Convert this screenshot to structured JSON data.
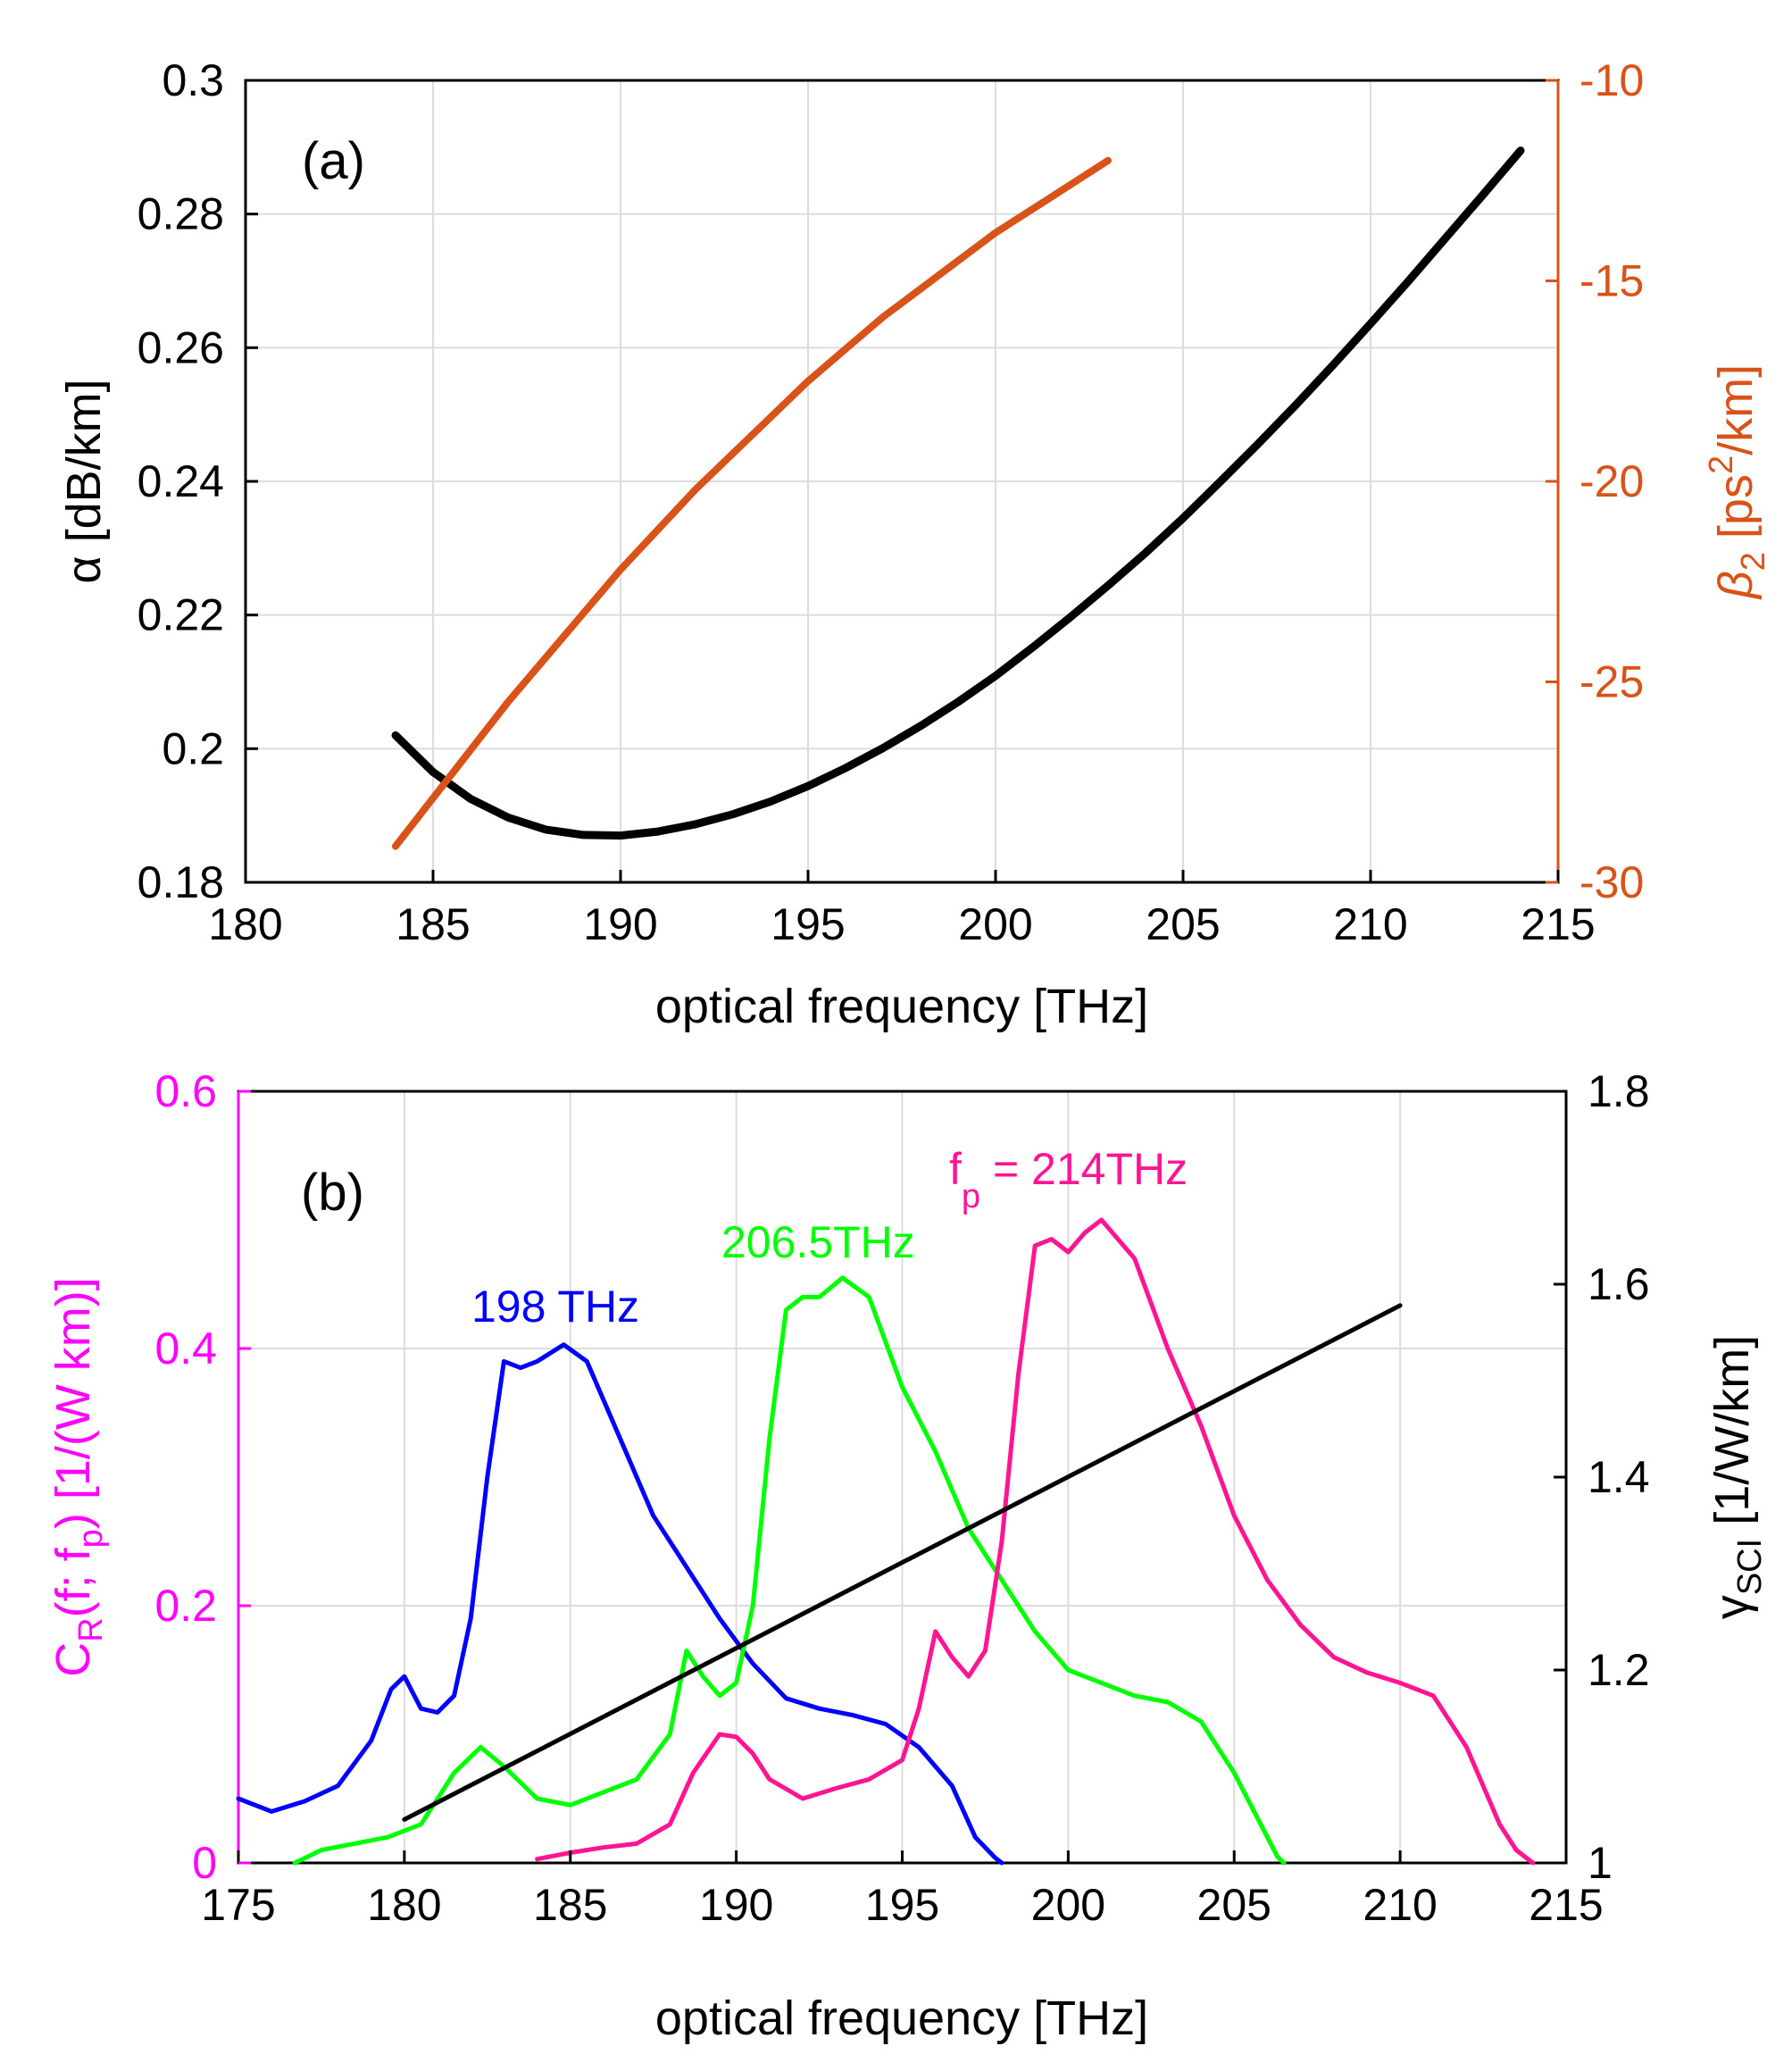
{
  "colors": {
    "alpha": "#000000",
    "beta2": "#d95319",
    "left_b": "#ff00ff",
    "blue": "#0000ff",
    "green": "#00ff00",
    "pink": "#ff1493",
    "gamma": "#000000",
    "axis": "#000000"
  },
  "chart_data": [
    {
      "id": "a",
      "type": "line",
      "panel_label": "(a)",
      "xlabel": "optical frequency [THz]",
      "ylabel_left": "α [dB/km]",
      "ylabel_right": {
        "main": "β",
        "sub": "2",
        "rest": " [ps",
        "sup": "2",
        "end": "/km]"
      },
      "xlim": [
        180,
        215
      ],
      "ylim_left": [
        0.18,
        0.3
      ],
      "ylim_right": [
        -30,
        -10
      ],
      "xticks": [
        "180",
        "185",
        "190",
        "195",
        "200",
        "205",
        "210",
        "215"
      ],
      "yticks_left": [
        "0.18",
        "0.2",
        "0.22",
        "0.24",
        "0.26",
        "0.28",
        "0.3"
      ],
      "yticks_right": [
        "-30",
        "-25",
        "-20",
        "-15",
        "-10"
      ],
      "grid": true,
      "series": [
        {
          "name": "alpha",
          "axis": "left",
          "x": [
            184,
            185,
            186,
            187,
            188,
            189,
            190,
            191,
            192,
            193,
            194,
            195,
            196,
            197,
            198,
            199,
            200,
            201,
            202,
            203,
            204,
            205,
            206,
            207,
            208,
            209,
            210,
            211,
            212,
            213,
            214
          ],
          "y": [
            0.202,
            0.1965,
            0.1925,
            0.1897,
            0.1879,
            0.1871,
            0.187,
            0.1876,
            0.1887,
            0.1902,
            0.1921,
            0.1944,
            0.1971,
            0.2001,
            0.2034,
            0.207,
            0.2109,
            0.2152,
            0.2197,
            0.2244,
            0.2293,
            0.2345,
            0.24,
            0.2456,
            0.2514,
            0.2574,
            0.2636,
            0.2699,
            0.2764,
            0.2829,
            0.2895
          ]
        },
        {
          "name": "beta2",
          "axis": "right",
          "x": [
            184,
            185,
            186,
            187,
            188,
            189,
            190,
            191,
            192,
            193,
            194,
            195,
            196,
            197,
            198,
            199,
            200,
            201,
            202,
            203
          ],
          "y": [
            -29.1,
            -27.9,
            -26.7,
            -25.5,
            -24.4,
            -23.3,
            -22.2,
            -21.2,
            -20.2,
            -19.3,
            -18.4,
            -17.5,
            -16.7,
            -15.9,
            -15.2,
            -14.5,
            -13.8,
            -13.2,
            -12.6,
            -12.0
          ]
        }
      ]
    },
    {
      "id": "b",
      "type": "line",
      "panel_label": "(b)",
      "xlabel": "optical frequency [THz]",
      "ylabel_left": {
        "main": "C",
        "sub": "R",
        "mid": "(f; f",
        "sub2": "p",
        "end": ")  [1/(W km)]"
      },
      "ylabel_right": {
        "main": "γ",
        "sub": "SCI",
        "end": " [1/W/km]"
      },
      "xlim": [
        175,
        215
      ],
      "ylim_left": [
        0,
        0.6
      ],
      "ylim_right": [
        1,
        1.8
      ],
      "xticks": [
        "175",
        "180",
        "185",
        "190",
        "195",
        "200",
        "205",
        "210",
        "215"
      ],
      "yticks_left": [
        "0",
        "0.2",
        "0.4",
        "0.6"
      ],
      "yticks_right": [
        "1",
        "1.2",
        "1.4",
        "1.6",
        "1.8"
      ],
      "grid": true,
      "annotations": {
        "blue": "198 THz",
        "green": "206.5THz",
        "pink_main": "f",
        "pink_sub": "p",
        "pink_rest": " = 214THz"
      },
      "series": [
        {
          "name": "198 THz",
          "axis": "left",
          "x": [
            175,
            176,
            177,
            178,
            179,
            179.6,
            180,
            180.5,
            181,
            181.5,
            182,
            182.5,
            183,
            183.5,
            184,
            184.8,
            185.5,
            186.5,
            187.5,
            188.5,
            189.5,
            190.5,
            191.5,
            192.5,
            193.5,
            194.5,
            195.5,
            196.5,
            197.2,
            197.8,
            198
          ],
          "y": [
            0.05,
            0.04,
            0.048,
            0.06,
            0.095,
            0.135,
            0.145,
            0.12,
            0.117,
            0.13,
            0.19,
            0.3,
            0.39,
            0.385,
            0.39,
            0.403,
            0.39,
            0.33,
            0.27,
            0.23,
            0.19,
            0.155,
            0.128,
            0.12,
            0.115,
            0.108,
            0.09,
            0.06,
            0.02,
            0.004,
            0
          ]
        },
        {
          "name": "206.5THz",
          "axis": "left",
          "x": [
            176.7,
            177.5,
            178.5,
            179.5,
            180.5,
            181.5,
            182.3,
            183,
            184,
            185,
            186,
            187,
            188,
            188.5,
            189,
            189.5,
            190,
            190.5,
            191,
            191.5,
            192,
            192.5,
            193.2,
            194,
            195,
            196,
            197,
            198,
            199,
            200,
            201,
            202,
            203,
            204,
            205,
            205.8,
            206.3,
            206.5
          ],
          "y": [
            0,
            0.01,
            0.015,
            0.02,
            0.03,
            0.07,
            0.09,
            0.075,
            0.05,
            0.045,
            0.055,
            0.065,
            0.1,
            0.165,
            0.145,
            0.13,
            0.14,
            0.2,
            0.33,
            0.43,
            0.44,
            0.44,
            0.455,
            0.44,
            0.37,
            0.32,
            0.26,
            0.22,
            0.18,
            0.15,
            0.14,
            0.13,
            0.125,
            0.11,
            0.07,
            0.03,
            0.005,
            0
          ]
        },
        {
          "name": "214THz",
          "axis": "left",
          "x": [
            184,
            185,
            186,
            187,
            188,
            188.7,
            189.5,
            190,
            190.5,
            191,
            192,
            193,
            194,
            195,
            195.5,
            196,
            196.5,
            197,
            197.5,
            198,
            198.5,
            199,
            199.5,
            200,
            200.5,
            201,
            202,
            203,
            204,
            205,
            206,
            207,
            208,
            209,
            210,
            211,
            212,
            213,
            213.5,
            214
          ],
          "y": [
            0.003,
            0.008,
            0.012,
            0.015,
            0.03,
            0.07,
            0.1,
            0.098,
            0.085,
            0.065,
            0.05,
            0.058,
            0.065,
            0.08,
            0.12,
            0.18,
            0.16,
            0.145,
            0.165,
            0.25,
            0.38,
            0.48,
            0.485,
            0.475,
            0.49,
            0.5,
            0.47,
            0.4,
            0.34,
            0.27,
            0.22,
            0.185,
            0.16,
            0.148,
            0.14,
            0.13,
            0.09,
            0.03,
            0.01,
            0
          ]
        },
        {
          "name": "gamma_SCI",
          "axis": "right",
          "x": [
            180,
            210
          ],
          "y": [
            1.045,
            1.578
          ]
        }
      ]
    }
  ]
}
